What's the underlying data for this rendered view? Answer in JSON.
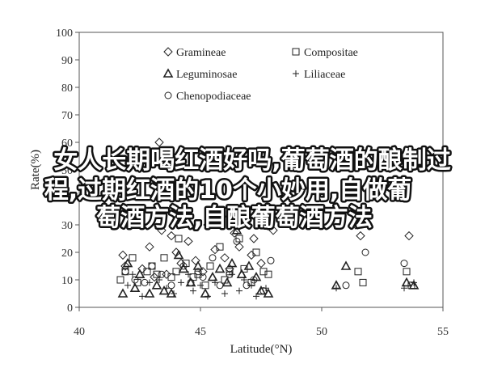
{
  "overlay": {
    "lines": [
      "女人长期喝红酒好吗,葡萄酒的酿制过",
      "程,过期红酒的10个小妙用,自做葡",
      "萄酒方法,自酿葡萄酒方法"
    ]
  },
  "chart_data": {
    "type": "scatter",
    "xlabel": "Latitude(°N)",
    "ylabel": "Rate(%)",
    "xlim": [
      40,
      55
    ],
    "ylim": [
      0,
      100
    ],
    "xticks": [
      "40",
      "45",
      "50",
      "55"
    ],
    "yticks": [
      "0",
      "10",
      "20",
      "30",
      "40",
      "50",
      "60",
      "70",
      "80",
      "90",
      "100"
    ],
    "legend_position": "top-inside",
    "series": [
      {
        "name": "Gramineae",
        "marker": "diamond",
        "points": [
          [
            41.8,
            19
          ],
          [
            41.9,
            15
          ],
          [
            42.1,
            35
          ],
          [
            42.6,
            14
          ],
          [
            42.9,
            22
          ],
          [
            43.1,
            11
          ],
          [
            43.3,
            60
          ],
          [
            43.4,
            28
          ],
          [
            43.6,
            12
          ],
          [
            43.8,
            26
          ],
          [
            44.0,
            20
          ],
          [
            44.2,
            16
          ],
          [
            44.5,
            24
          ],
          [
            44.8,
            17
          ],
          [
            45.1,
            13
          ],
          [
            45.3,
            30
          ],
          [
            45.6,
            21
          ],
          [
            45.9,
            33
          ],
          [
            46.0,
            18
          ],
          [
            46.2,
            14
          ],
          [
            46.4,
            27
          ],
          [
            46.6,
            22
          ],
          [
            46.9,
            31
          ],
          [
            47.1,
            19
          ],
          [
            47.2,
            25
          ],
          [
            47.5,
            16
          ],
          [
            47.9,
            36
          ],
          [
            48.0,
            28
          ],
          [
            51.4,
            30
          ],
          [
            51.6,
            26
          ],
          [
            53.6,
            26
          ]
        ]
      },
      {
        "name": "Compositae",
        "marker": "square",
        "points": [
          [
            41.7,
            10
          ],
          [
            41.9,
            13
          ],
          [
            42.2,
            18
          ],
          [
            42.4,
            9
          ],
          [
            42.8,
            13
          ],
          [
            43.0,
            15
          ],
          [
            43.2,
            12
          ],
          [
            43.5,
            18
          ],
          [
            43.8,
            11
          ],
          [
            44.0,
            13
          ],
          [
            44.1,
            25
          ],
          [
            44.4,
            16
          ],
          [
            44.7,
            11
          ],
          [
            44.9,
            12
          ],
          [
            45.2,
            8
          ],
          [
            45.4,
            15
          ],
          [
            45.8,
            22
          ],
          [
            46.0,
            10
          ],
          [
            46.2,
            13
          ],
          [
            46.6,
            25
          ],
          [
            46.8,
            14
          ],
          [
            47.1,
            9
          ],
          [
            47.3,
            20
          ],
          [
            47.6,
            13
          ],
          [
            47.8,
            12
          ],
          [
            51.5,
            13
          ],
          [
            51.7,
            9
          ],
          [
            53.5,
            13
          ],
          [
            53.7,
            8
          ]
        ]
      },
      {
        "name": "Leguminosae",
        "marker": "triangle",
        "points": [
          [
            41.8,
            5
          ],
          [
            42.0,
            16
          ],
          [
            42.3,
            7
          ],
          [
            42.5,
            12
          ],
          [
            42.9,
            5
          ],
          [
            43.2,
            8
          ],
          [
            43.5,
            6
          ],
          [
            43.8,
            5
          ],
          [
            44.1,
            19
          ],
          [
            44.3,
            14
          ],
          [
            44.6,
            9
          ],
          [
            44.9,
            15
          ],
          [
            45.2,
            5
          ],
          [
            45.5,
            11
          ],
          [
            45.8,
            14
          ],
          [
            46.1,
            9
          ],
          [
            46.3,
            16
          ],
          [
            46.5,
            28
          ],
          [
            46.7,
            12
          ],
          [
            47.0,
            15
          ],
          [
            47.3,
            11
          ],
          [
            47.5,
            6
          ],
          [
            47.8,
            5
          ],
          [
            50.6,
            8
          ],
          [
            51.0,
            15
          ],
          [
            53.5,
            9
          ],
          [
            53.8,
            8
          ]
        ]
      },
      {
        "name": "Liliaceae",
        "marker": "plus",
        "points": [
          [
            42.0,
            8
          ],
          [
            42.2,
            12
          ],
          [
            42.6,
            4
          ],
          [
            42.9,
            9
          ],
          [
            43.3,
            10
          ],
          [
            43.6,
            7
          ],
          [
            43.9,
            5
          ],
          [
            44.2,
            9
          ],
          [
            44.5,
            12
          ],
          [
            44.7,
            6
          ],
          [
            45.0,
            8
          ],
          [
            45.3,
            4
          ],
          [
            45.6,
            9
          ],
          [
            46.0,
            5
          ],
          [
            46.3,
            12
          ],
          [
            46.6,
            6
          ],
          [
            46.8,
            10
          ],
          [
            47.1,
            8
          ],
          [
            47.3,
            4
          ],
          [
            47.7,
            7
          ],
          [
            50.6,
            7
          ],
          [
            53.4,
            7
          ],
          [
            53.8,
            9
          ]
        ]
      },
      {
        "name": "Chenopodiaceae",
        "marker": "circle",
        "points": [
          [
            41.9,
            13
          ],
          [
            42.3,
            10
          ],
          [
            42.7,
            9
          ],
          [
            43.0,
            15
          ],
          [
            43.4,
            12
          ],
          [
            43.8,
            8
          ],
          [
            44.3,
            15
          ],
          [
            44.6,
            9
          ],
          [
            44.9,
            13
          ],
          [
            45.1,
            11
          ],
          [
            45.5,
            18
          ],
          [
            45.8,
            8
          ],
          [
            46.2,
            12
          ],
          [
            46.5,
            24
          ],
          [
            46.9,
            8
          ],
          [
            47.2,
            10
          ],
          [
            47.6,
            6
          ],
          [
            47.9,
            17
          ],
          [
            51.0,
            8
          ],
          [
            51.8,
            20
          ],
          [
            53.4,
            16
          ]
        ]
      }
    ]
  }
}
